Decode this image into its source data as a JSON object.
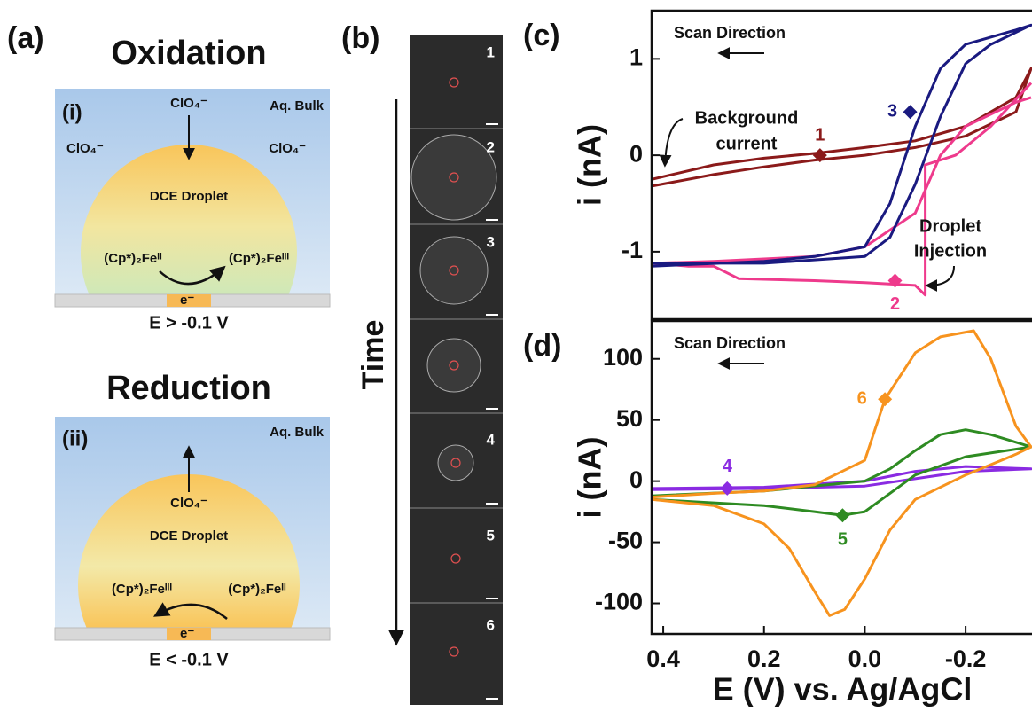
{
  "panel_a": {
    "label": "(a)",
    "oxidation": {
      "title": "Oxidation",
      "label": "(i)",
      "bulk": "Aq. Bulk",
      "ions": [
        "ClO₄⁻",
        "ClO₄⁻",
        "ClO₄⁻"
      ],
      "droplet": "DCE Droplet",
      "left_species": "(Cp*)₂Feᴵᴵ",
      "right_species": "(Cp*)₂Feᴵᴵᴵ",
      "electron": "e⁻",
      "potential": "E > -0.1 V"
    },
    "reduction": {
      "title": "Reduction",
      "label": "(ii)",
      "bulk": "Aq. Bulk",
      "ion": "ClO₄⁻",
      "droplet": "DCE Droplet",
      "left_species": "(Cp*)₂Feᴵᴵᴵ",
      "right_species": "(Cp*)₂Feᴵᴵ",
      "electron": "e⁻",
      "potential": "E < -0.1 V"
    }
  },
  "panel_b": {
    "label": "(b)",
    "axis": "Time",
    "frames": [
      "1",
      "2",
      "3",
      "4",
      "5",
      "6"
    ]
  },
  "chart_data": [
    {
      "type": "line",
      "panel": "(c)",
      "y_label": "i (nA)",
      "xlim": [
        0.423,
        -0.33
      ],
      "ylim": [
        -1.7,
        1.5
      ],
      "yticks": [
        -1,
        0,
        1
      ],
      "annotations": {
        "scan_direction": "Scan Direction",
        "background_current": [
          "Background",
          "current"
        ],
        "droplet_injection": [
          "Droplet",
          "Injection"
        ]
      },
      "series": [
        {
          "name": "1",
          "color": "#8b1a1a",
          "x": [
            0.423,
            0.3,
            0.2,
            0.1,
            0.0,
            -0.1,
            -0.2,
            -0.3,
            -0.33,
            -0.3,
            -0.2,
            -0.1,
            0.0,
            0.1,
            0.2,
            0.3,
            0.423
          ],
          "values": [
            -0.25,
            -0.1,
            -0.03,
            0.02,
            0.08,
            0.15,
            0.3,
            0.6,
            0.9,
            0.45,
            0.2,
            0.08,
            0.0,
            -0.05,
            -0.12,
            -0.2,
            -0.32
          ],
          "marker": {
            "x": 0.089,
            "y": 0.0
          }
        },
        {
          "name": "2",
          "color": "#ee3a8c",
          "x": [
            -0.33,
            -0.25,
            -0.18,
            -0.12,
            -0.12,
            -0.1,
            0.0,
            0.1,
            0.25,
            0.3,
            0.35,
            0.423,
            0.3,
            0.1,
            0.0,
            -0.1,
            -0.15,
            -0.2,
            -0.3,
            -0.33
          ],
          "values": [
            0.75,
            0.3,
            0.0,
            -0.1,
            -1.45,
            -1.35,
            -1.32,
            -1.3,
            -1.28,
            -1.15,
            -1.15,
            -1.12,
            -1.1,
            -1.05,
            -0.95,
            -0.6,
            0.0,
            0.3,
            0.55,
            0.6
          ],
          "marker": {
            "x": -0.06,
            "y": -1.3
          }
        },
        {
          "name": "3",
          "color": "#1a1a80",
          "x": [
            0.423,
            0.2,
            0.1,
            0.0,
            -0.05,
            -0.1,
            -0.15,
            -0.2,
            -0.3,
            -0.33,
            -0.25,
            -0.2,
            -0.15,
            -0.1,
            -0.05,
            0.0,
            0.2,
            0.423
          ],
          "values": [
            -1.15,
            -1.1,
            -1.05,
            -0.95,
            -0.5,
            0.3,
            0.9,
            1.15,
            1.3,
            1.35,
            1.15,
            0.95,
            0.4,
            -0.3,
            -0.85,
            -1.05,
            -1.12,
            -1.12
          ],
          "marker": {
            "x": -0.09,
            "y": 0.45
          }
        }
      ]
    },
    {
      "type": "line",
      "panel": "(d)",
      "y_label": "i (nA)",
      "x_label": "E (V) vs. Ag/AgCl",
      "xlim": [
        0.423,
        -0.33
      ],
      "ylim": [
        -125,
        131
      ],
      "xticks": [
        0.4,
        0.2,
        {
          "value": 0,
          "label": "0.0"
        },
        -0.2
      ],
      "yticks": [
        -100,
        -50,
        0,
        50,
        100
      ],
      "annotations": {
        "scan_direction": "Scan Direction"
      },
      "series": [
        {
          "name": "4",
          "color": "#8a2be2",
          "x": [
            0.423,
            0.2,
            0.0,
            -0.1,
            -0.2,
            -0.33,
            -0.2,
            -0.1,
            0.0,
            0.2,
            0.423
          ],
          "values": [
            -7,
            -6,
            -4,
            2,
            8,
            10,
            12,
            8,
            0,
            -5,
            -6
          ],
          "marker": {
            "x": 0.273,
            "y": -6
          }
        },
        {
          "name": "5",
          "color": "#2e8b22",
          "x": [
            0.423,
            0.2,
            0.1,
            0.044,
            0.0,
            -0.05,
            -0.1,
            -0.2,
            -0.33,
            -0.25,
            -0.2,
            -0.15,
            -0.1,
            -0.05,
            0.0,
            0.2,
            0.423
          ],
          "values": [
            -15,
            -20,
            -25,
            -28,
            -25,
            -10,
            5,
            20,
            28,
            38,
            42,
            38,
            25,
            10,
            0,
            -8,
            -12
          ],
          "marker": {
            "x": 0.044,
            "y": -28
          }
        },
        {
          "name": "6",
          "color": "#f7931e",
          "x": [
            0.423,
            0.3,
            0.2,
            0.15,
            0.1,
            0.07,
            0.04,
            0.0,
            -0.05,
            -0.1,
            -0.2,
            -0.3,
            -0.33,
            -0.3,
            -0.25,
            -0.216,
            -0.15,
            -0.1,
            -0.04,
            0.0,
            0.1,
            0.2,
            0.3,
            0.423
          ],
          "values": [
            -15,
            -20,
            -35,
            -55,
            -90,
            -110,
            -105,
            -80,
            -40,
            -15,
            5,
            22,
            28,
            45,
            100,
            123,
            118,
            105,
            67,
            17,
            -3,
            -8,
            -10,
            -13
          ],
          "marker": {
            "x": -0.04,
            "y": 67
          }
        }
      ]
    }
  ]
}
